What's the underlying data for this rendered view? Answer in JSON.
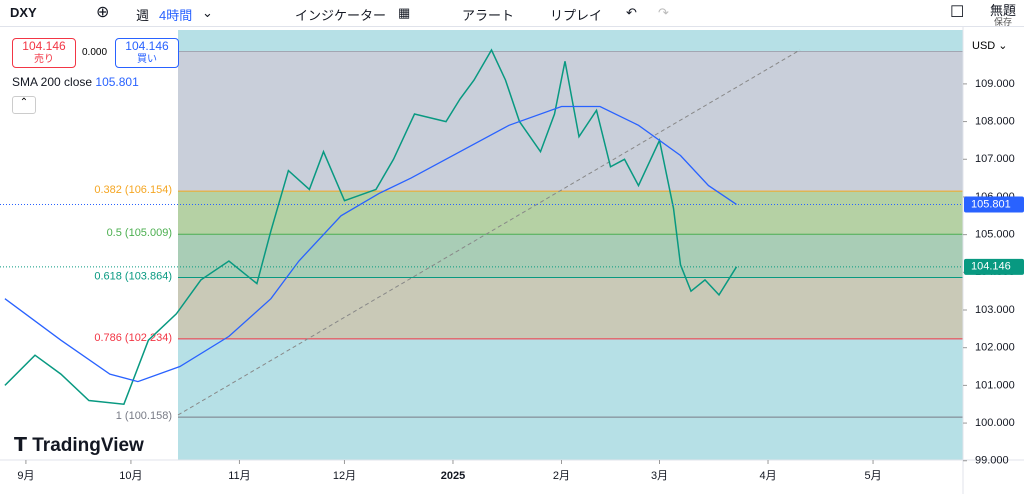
{
  "toolbar": {
    "symbol": "DXY",
    "week": "週",
    "interval": "4時間",
    "indicators": "インジケーター",
    "alert": "アラート",
    "replay": "リプレイ",
    "layout_name": "無題",
    "save": "保存"
  },
  "order_panel": {
    "sell_price": "104.146",
    "sell": "売り",
    "spread": "0.000",
    "buy_price": "104.146",
    "buy": "買い"
  },
  "legend": {
    "indicator": "SMA 200 close"
  },
  "currency": "USD",
  "watermark": "TradingView",
  "chart_data": {
    "type": "line",
    "xlim": [
      -7.4,
      267.7
    ],
    "ylim": [
      99.02,
      110.43
    ],
    "xticks": [
      {
        "value": 0,
        "label": "9月"
      },
      {
        "value": 30,
        "label": "10月"
      },
      {
        "value": 61,
        "label": "11月"
      },
      {
        "value": 91,
        "label": "12月"
      },
      {
        "value": 122,
        "label": "2025"
      },
      {
        "value": 153,
        "label": "2月"
      },
      {
        "value": 181,
        "label": "3月"
      },
      {
        "value": 212,
        "label": "4月"
      },
      {
        "value": 242,
        "label": "5月"
      }
    ],
    "yticks": [
      {
        "value": 99,
        "label": "99.000"
      },
      {
        "value": 100,
        "label": "100.000"
      },
      {
        "value": 101,
        "label": "101.000"
      },
      {
        "value": 102,
        "label": "102.000"
      },
      {
        "value": 103,
        "label": "103.000"
      },
      {
        "value": 104,
        "label": "104.000"
      },
      {
        "value": 105,
        "label": "105.000"
      },
      {
        "value": 106,
        "label": "106.000"
      },
      {
        "value": 107,
        "label": "107.000"
      },
      {
        "value": 108,
        "label": "108.000"
      },
      {
        "value": 109,
        "label": "109.000"
      }
    ],
    "series": [
      {
        "name": "DXY",
        "color": "#089981",
        "x": [
          -6,
          2.6,
          10,
          18,
          28,
          35,
          43,
          50,
          58,
          66,
          70,
          75,
          81,
          85,
          91,
          100,
          105,
          111,
          120,
          124,
          128,
          133,
          137,
          141,
          147,
          151,
          154,
          158,
          163,
          167,
          171,
          175,
          181,
          185,
          187,
          190,
          194,
          198,
          203
        ],
        "values": [
          101.0,
          101.8,
          101.3,
          100.6,
          100.5,
          102.2,
          102.9,
          103.8,
          104.3,
          103.7,
          105.1,
          106.7,
          106.2,
          107.2,
          105.9,
          106.2,
          107.0,
          108.2,
          108.0,
          108.6,
          109.1,
          109.9,
          109.1,
          108.0,
          107.2,
          108.2,
          109.6,
          107.6,
          108.3,
          106.8,
          107.0,
          106.3,
          107.5,
          105.7,
          104.2,
          103.5,
          103.8,
          103.4,
          104.146
        ]
      },
      {
        "name": "SMA 200 close",
        "color": "#2962ff",
        "x": [
          -6,
          10,
          24,
          32,
          44,
          58,
          70,
          78,
          90,
          101,
          110,
          124,
          138,
          153,
          164,
          175,
          187,
          195,
          203
        ],
        "values": [
          103.3,
          102.2,
          101.3,
          101.1,
          101.5,
          102.3,
          103.3,
          104.3,
          105.5,
          106.1,
          106.5,
          107.2,
          107.9,
          108.4,
          108.4,
          107.9,
          107.1,
          106.3,
          105.801
        ]
      }
    ],
    "last_price": 104.146,
    "sma_value": 105.801,
    "fib_top": 109.86,
    "fib_levels": [
      {
        "label": "0.382 (106.154)",
        "value": 106.154,
        "color": "#f5a623",
        "band_color": "#c9cfda"
      },
      {
        "label": "0.5 (105.009)",
        "value": 105.009,
        "color": "#4caf50",
        "band_color": "#b5d1a4"
      },
      {
        "label": "0.618 (103.864)",
        "value": 103.864,
        "color": "#089981",
        "band_color": "#a9cdb6"
      },
      {
        "label": "0.786 (102.234)",
        "value": 102.234,
        "color": "#f23645",
        "band_color": "#c9c9b7"
      },
      {
        "label": "1 (100.158)",
        "value": 100.158,
        "color": "#787b86",
        "band_color": "#b6e0e6"
      }
    ]
  }
}
